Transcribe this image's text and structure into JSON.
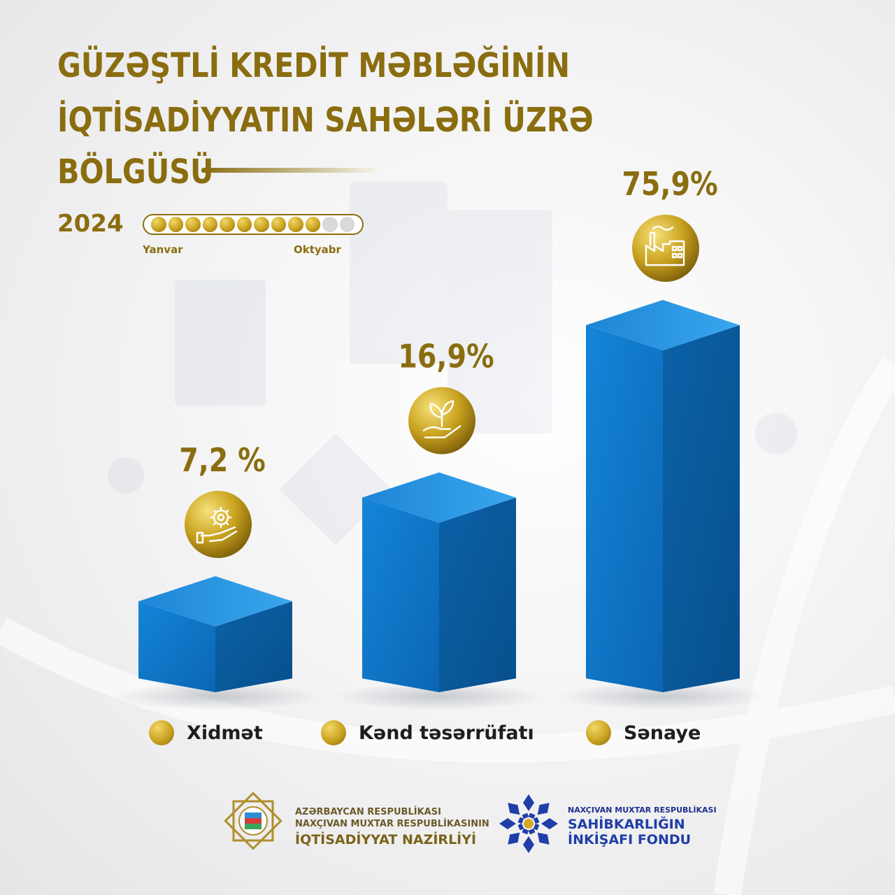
{
  "title": {
    "line1": "GÜZƏŞTLİ KREDİT MƏBLƏĞİNİN",
    "line2": "İQTİSADİYYATIN SAHƏLƏRİ ÜZRƏ",
    "line3": "BÖLGÜSÜ"
  },
  "period": {
    "year": "2024",
    "start_label": "Yanvar",
    "end_label": "Oktyabr",
    "months_total": 12,
    "months_filled": 10
  },
  "colors": {
    "gold": "#8a6d0f",
    "gold_light": "#f1d867",
    "bar_blue": "#0a6fc1",
    "bar_blue_dark": "#0a5a9c",
    "bar_top": "#2596e6",
    "navy": "#1f2f8f"
  },
  "chart_data": {
    "type": "bar",
    "categories": [
      "Xidmət",
      "Kənd təsərrüfatı",
      "Sənaye"
    ],
    "values": [
      7.2,
      16.9,
      75.9
    ],
    "value_labels": [
      "7,2 %",
      "16,9%",
      "75,9%"
    ],
    "icons": [
      "gear-hand-icon",
      "sprout-hand-icon",
      "factory-icon"
    ],
    "ylim": [
      0,
      100
    ],
    "legend_position": "bottom",
    "grid": false
  },
  "footer": {
    "left": {
      "line1": "AZƏRBAYCAN RESPUBLİKASI",
      "line2": "NAXÇIVAN MUXTAR RESPUBLİKASININ",
      "line3": "İQTİSADİYYAT NAZİRLİYİ"
    },
    "right": {
      "line1": "NAXÇIVAN MUXTAR RESPUBLİKASI",
      "line2": "SAHİBKARLIĞIN",
      "line3": "İNKİŞAFI FONDU"
    }
  }
}
